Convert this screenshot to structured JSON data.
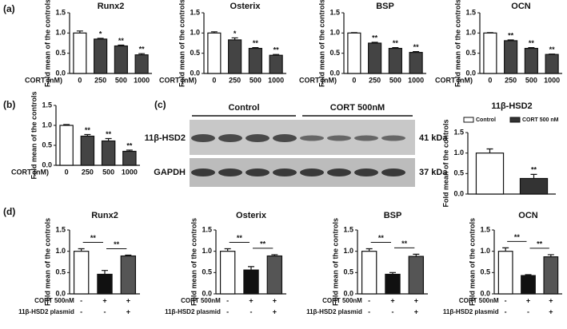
{
  "panel_labels": [
    "(a)",
    "(b)",
    "(c)",
    "(d)"
  ],
  "blot": {
    "groups": [
      "Control",
      "CORT 500nM"
    ],
    "proteins": [
      "11β-HSD2",
      "GAPDH"
    ],
    "sizes": [
      "41 kDa",
      "37 kDa"
    ]
  },
  "chart_data": [
    {
      "type": "bar",
      "title": "Runx2",
      "ylabel": "Fold mean of the controls",
      "xlabel": "CORT (nM)",
      "categories": [
        "0",
        "250",
        "500",
        "1000"
      ],
      "values": [
        1.0,
        0.85,
        0.68,
        0.46
      ],
      "errors": [
        0.05,
        0.02,
        0.02,
        0.03
      ],
      "significance": [
        null,
        "*",
        "**",
        "**"
      ],
      "colors": [
        "#ffffff",
        "#444444",
        "#444444",
        "#444444"
      ],
      "ylim": [
        0,
        1.5
      ],
      "yticks": [
        {
          "value": 0,
          "label": "0.0"
        },
        {
          "value": 0.5,
          "label": "0.5"
        },
        {
          "value": 1,
          "label": "1.0"
        },
        {
          "value": 1.5,
          "label": "1.5"
        }
      ]
    },
    {
      "type": "bar",
      "title": "Osterix",
      "ylabel": "Fold mean of the controls",
      "xlabel": "CORT (nM)",
      "categories": [
        "0",
        "250",
        "500",
        "1000"
      ],
      "values": [
        1.0,
        0.83,
        0.62,
        0.45
      ],
      "errors": [
        0.03,
        0.05,
        0.02,
        0.02
      ],
      "significance": [
        null,
        "*",
        "**",
        "**"
      ],
      "colors": [
        "#ffffff",
        "#444444",
        "#444444",
        "#444444"
      ],
      "ylim": [
        0,
        1.5
      ],
      "yticks": [
        {
          "value": 0,
          "label": "0.0"
        },
        {
          "value": 0.5,
          "label": "0.5"
        },
        {
          "value": 1,
          "label": "1.0"
        },
        {
          "value": 1.5,
          "label": "1.5"
        }
      ]
    },
    {
      "type": "bar",
      "title": "BSP",
      "ylabel": "Fold mean of the controls",
      "xlabel": "CORT (nM)",
      "categories": [
        "0",
        "250",
        "500",
        "1000"
      ],
      "values": [
        1.0,
        0.75,
        0.62,
        0.52
      ],
      "errors": [
        0.01,
        0.02,
        0.02,
        0.02
      ],
      "significance": [
        null,
        "**",
        "**",
        "**"
      ],
      "colors": [
        "#ffffff",
        "#444444",
        "#444444",
        "#444444"
      ],
      "ylim": [
        0,
        1.5
      ],
      "yticks": [
        {
          "value": 0,
          "label": "0.0"
        },
        {
          "value": 0.5,
          "label": "0.5"
        },
        {
          "value": 1,
          "label": "1.0"
        },
        {
          "value": 1.5,
          "label": "1.5"
        }
      ]
    },
    {
      "type": "bar",
      "title": "OCN",
      "ylabel": "Fold mean of the controls",
      "xlabel": "CORT (nM)",
      "categories": [
        "0",
        "250",
        "500",
        "1000"
      ],
      "values": [
        1.0,
        0.81,
        0.62,
        0.47
      ],
      "errors": [
        0.01,
        0.02,
        0.02,
        0.01
      ],
      "significance": [
        null,
        "**",
        "**",
        "**"
      ],
      "colors": [
        "#ffffff",
        "#444444",
        "#444444",
        "#444444"
      ],
      "ylim": [
        0,
        1.5
      ],
      "yticks": [
        {
          "value": 0,
          "label": "0.0"
        },
        {
          "value": 0.5,
          "label": "0.5"
        },
        {
          "value": 1,
          "label": "1.0"
        },
        {
          "value": 1.5,
          "label": "1.5"
        }
      ]
    },
    {
      "type": "bar",
      "ylabel": "Fold mean of the controls",
      "xlabel": "CORT (nM)",
      "categories": [
        "0",
        "250",
        "500",
        "1000"
      ],
      "values": [
        1.0,
        0.73,
        0.61,
        0.35
      ],
      "errors": [
        0.02,
        0.04,
        0.06,
        0.03
      ],
      "significance": [
        null,
        "**",
        "**",
        "**"
      ],
      "colors": [
        "#ffffff",
        "#444444",
        "#444444",
        "#444444"
      ],
      "ylim": [
        0,
        1.5
      ],
      "yticks": [
        {
          "value": 0,
          "label": "0.0"
        },
        {
          "value": 0.5,
          "label": "0.5"
        },
        {
          "value": 1,
          "label": "1.0"
        },
        {
          "value": 1.5,
          "label": "1.5"
        }
      ]
    },
    {
      "type": "bar",
      "title": "11β-HSD2",
      "ylabel": "Fold mean of the controls",
      "series": [
        {
          "name": "Control",
          "color": "#ffffff",
          "values": [
            1.0
          ],
          "errors": [
            0.1
          ]
        },
        {
          "name": "CORT 500 nM",
          "color": "#333333",
          "values": [
            0.38
          ],
          "errors": [
            0.1
          ],
          "significance": [
            "**"
          ]
        }
      ],
      "ylim": [
        0,
        1.5
      ],
      "yticks": [
        {
          "value": 0,
          "label": "0.0"
        },
        {
          "value": 0.5,
          "label": "0.5"
        },
        {
          "value": 1,
          "label": "1.0"
        },
        {
          "value": 1.5,
          "label": "1.5"
        }
      ]
    },
    {
      "type": "bar",
      "title": "Runx2",
      "ylabel": "Fold mean of the controls",
      "conditions": [
        {
          "name": "CORT 500nM",
          "levels": [
            "-",
            "+",
            "+"
          ]
        },
        {
          "name": "11β-HSD2 plasmid",
          "levels": [
            "-",
            "-",
            "+"
          ]
        }
      ],
      "values": [
        1.0,
        0.46,
        0.89
      ],
      "errors": [
        0.06,
        0.09,
        0.02
      ],
      "comparisons": [
        "**",
        "**"
      ],
      "colors": [
        "#ffffff",
        "#111111",
        "#555555"
      ],
      "ylim": [
        0,
        1.5
      ],
      "yticks": [
        {
          "value": 0,
          "label": "0.0"
        },
        {
          "value": 0.5,
          "label": "0.5"
        },
        {
          "value": 1,
          "label": "1.0"
        },
        {
          "value": 1.5,
          "label": "1.5"
        }
      ]
    },
    {
      "type": "bar",
      "title": "Osterix",
      "ylabel": "Fold mean of the controls",
      "conditions": [
        {
          "name": "CORT 500nM",
          "levels": [
            "-",
            "+",
            "+"
          ]
        },
        {
          "name": "11β-HSD2 plasmid",
          "levels": [
            "-",
            "-",
            "+"
          ]
        }
      ],
      "values": [
        1.0,
        0.56,
        0.89
      ],
      "errors": [
        0.06,
        0.08,
        0.03
      ],
      "comparisons": [
        "**",
        "**"
      ],
      "colors": [
        "#ffffff",
        "#111111",
        "#555555"
      ],
      "ylim": [
        0,
        1.5
      ],
      "yticks": [
        {
          "value": 0,
          "label": "0.0"
        },
        {
          "value": 0.5,
          "label": "0.5"
        },
        {
          "value": 1,
          "label": "1.0"
        },
        {
          "value": 1.5,
          "label": "1.5"
        }
      ]
    },
    {
      "type": "bar",
      "title": "BSP",
      "ylabel": "Fold mean of the controls",
      "conditions": [
        {
          "name": "CORT 500nM",
          "levels": [
            "-",
            "+",
            "+"
          ]
        },
        {
          "name": "11β-HSD2 plasmid",
          "levels": [
            "-",
            "-",
            "+"
          ]
        }
      ],
      "values": [
        1.0,
        0.46,
        0.88
      ],
      "errors": [
        0.06,
        0.04,
        0.05
      ],
      "comparisons": [
        "**",
        "**"
      ],
      "colors": [
        "#ffffff",
        "#111111",
        "#555555"
      ],
      "ylim": [
        0,
        1.5
      ],
      "yticks": [
        {
          "value": 0,
          "label": "0.0"
        },
        {
          "value": 0.5,
          "label": "0.5"
        },
        {
          "value": 1,
          "label": "1.0"
        },
        {
          "value": 1.5,
          "label": "1.5"
        }
      ]
    },
    {
      "type": "bar",
      "title": "OCN",
      "ylabel": "Fold mean of the controls",
      "conditions": [
        {
          "name": "CORT 500nM",
          "levels": [
            "-",
            "+",
            "+"
          ]
        },
        {
          "name": "11β-HSD2 plasmid",
          "levels": [
            "-",
            "-",
            "+"
          ]
        }
      ],
      "values": [
        1.0,
        0.43,
        0.87
      ],
      "errors": [
        0.08,
        0.02,
        0.05
      ],
      "comparisons": [
        "**",
        "**"
      ],
      "colors": [
        "#ffffff",
        "#111111",
        "#555555"
      ],
      "ylim": [
        0,
        1.5
      ],
      "yticks": [
        {
          "value": 0,
          "label": "0.0"
        },
        {
          "value": 0.5,
          "label": "0.5"
        },
        {
          "value": 1,
          "label": "1.0"
        },
        {
          "value": 1.5,
          "label": "1.5"
        }
      ]
    }
  ]
}
